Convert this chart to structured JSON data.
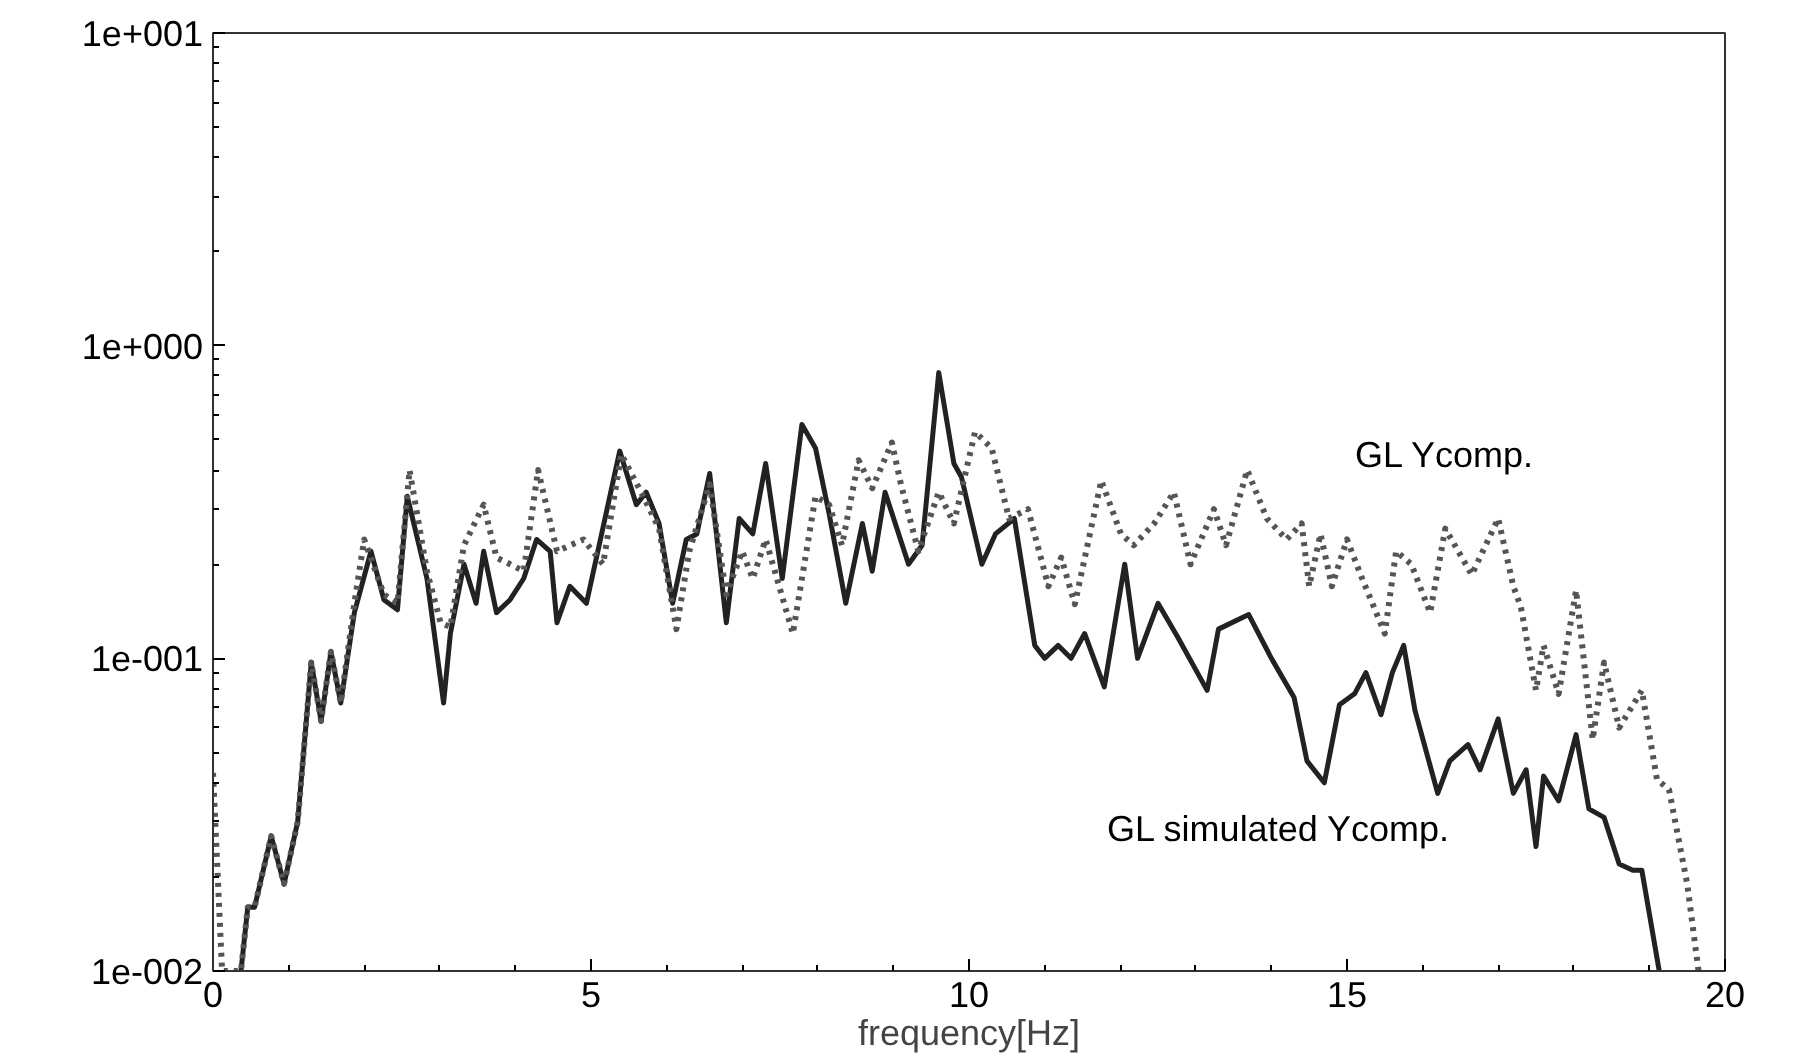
{
  "chart_data": {
    "type": "line",
    "xlabel": "frequency[Hz]",
    "xlim": [
      0,
      20
    ],
    "xticks": [
      0,
      5,
      10,
      15,
      20
    ],
    "ylim": [
      0.01,
      10
    ],
    "log": true,
    "yticks": [
      {
        "value": 0.01,
        "label": "1e-002"
      },
      {
        "value": 0.1,
        "label": "1e-001"
      },
      {
        "value": 1,
        "label": "1e+000"
      },
      {
        "value": 10,
        "label": "1e+001"
      }
    ],
    "grid": false,
    "legend": false,
    "marker": "none",
    "series": [
      {
        "name": "GL simulated Ycomp.",
        "color": "#222222",
        "line_style": "solid",
        "x": [
          0.37,
          0.46,
          0.55,
          0.77,
          0.94,
          1.12,
          1.3,
          1.43,
          1.56,
          1.69,
          1.87,
          2.09,
          2.26,
          2.44,
          2.57,
          2.83,
          3.05,
          3.14,
          3.32,
          3.48,
          3.58,
          3.75,
          3.93,
          4.11,
          4.28,
          4.46,
          4.55,
          4.72,
          4.94,
          5.38,
          5.6,
          5.73,
          5.9,
          6.08,
          6.26,
          6.4,
          6.57,
          6.79,
          6.96,
          7.14,
          7.31,
          7.53,
          7.79,
          7.97,
          8.15,
          8.37,
          8.59,
          8.72,
          8.89,
          9.2,
          9.38,
          9.6,
          9.8,
          9.9,
          10.17,
          10.35,
          10.6,
          10.87,
          11.0,
          11.18,
          11.35,
          11.53,
          11.79,
          12.06,
          12.23,
          12.5,
          12.76,
          13.15,
          13.3,
          13.7,
          14.0,
          14.3,
          14.47,
          14.7,
          14.9,
          15.1,
          15.25,
          15.45,
          15.6,
          15.75,
          15.9,
          16.2,
          16.36,
          16.6,
          16.76,
          17.0,
          17.2,
          17.37,
          17.5,
          17.6,
          17.8,
          18.03,
          18.2,
          18.4,
          18.6,
          18.78,
          18.9,
          19.13
        ],
        "values": [
          0.01,
          0.016,
          0.016,
          0.027,
          0.019,
          0.03,
          0.097,
          0.063,
          0.105,
          0.072,
          0.14,
          0.22,
          0.154,
          0.143,
          0.33,
          0.18,
          0.072,
          0.12,
          0.2,
          0.15,
          0.22,
          0.14,
          0.154,
          0.18,
          0.24,
          0.22,
          0.13,
          0.17,
          0.15,
          0.46,
          0.31,
          0.34,
          0.27,
          0.15,
          0.24,
          0.25,
          0.39,
          0.13,
          0.28,
          0.25,
          0.42,
          0.18,
          0.56,
          0.47,
          0.29,
          0.15,
          0.27,
          0.19,
          0.34,
          0.2,
          0.23,
          0.82,
          0.42,
          0.38,
          0.2,
          0.25,
          0.28,
          0.11,
          0.1,
          0.11,
          0.1,
          0.12,
          0.081,
          0.2,
          0.1,
          0.15,
          0.117,
          0.079,
          0.124,
          0.138,
          0.1,
          0.075,
          0.047,
          0.04,
          0.071,
          0.077,
          0.09,
          0.066,
          0.09,
          0.11,
          0.068,
          0.037,
          0.047,
          0.053,
          0.044,
          0.064,
          0.037,
          0.044,
          0.025,
          0.042,
          0.035,
          0.057,
          0.033,
          0.031,
          0.022,
          0.021,
          0.021,
          0.01
        ]
      },
      {
        "name": "GL Ycomp.",
        "color": "#555555",
        "line_style": "dotted",
        "x": [
          0.0,
          0.12,
          0.37,
          0.46,
          0.55,
          0.77,
          0.94,
          1.12,
          1.3,
          1.43,
          1.56,
          1.69,
          1.87,
          2.0,
          2.26,
          2.44,
          2.6,
          2.83,
          3.01,
          3.14,
          3.32,
          3.58,
          3.75,
          3.93,
          4.11,
          4.3,
          4.55,
          4.9,
          5.16,
          5.4,
          5.69,
          5.9,
          6.13,
          6.3,
          6.57,
          6.79,
          7.0,
          7.14,
          7.31,
          7.67,
          7.97,
          8.15,
          8.32,
          8.54,
          8.72,
          8.98,
          9.1,
          9.33,
          9.6,
          9.8,
          10.08,
          10.3,
          10.53,
          10.78,
          11.05,
          11.22,
          11.4,
          11.75,
          12.01,
          12.18,
          12.45,
          12.71,
          12.93,
          13.24,
          13.4,
          13.68,
          13.94,
          14.2,
          14.4,
          14.5,
          14.65,
          14.8,
          15.0,
          15.2,
          15.5,
          15.65,
          15.85,
          16.1,
          16.3,
          16.65,
          17.0,
          17.2,
          17.3,
          17.5,
          17.6,
          17.8,
          18.03,
          18.25,
          18.4,
          18.6,
          18.9,
          19.1,
          19.26,
          19.5,
          19.65
        ],
        "values": [
          0.043,
          0.01,
          0.01,
          0.016,
          0.016,
          0.027,
          0.019,
          0.03,
          0.097,
          0.063,
          0.105,
          0.072,
          0.15,
          0.24,
          0.16,
          0.15,
          0.4,
          0.19,
          0.13,
          0.126,
          0.23,
          0.31,
          0.21,
          0.2,
          0.19,
          0.4,
          0.22,
          0.24,
          0.2,
          0.45,
          0.33,
          0.26,
          0.124,
          0.22,
          0.36,
          0.16,
          0.22,
          0.18,
          0.24,
          0.12,
          0.33,
          0.31,
          0.23,
          0.43,
          0.35,
          0.49,
          0.36,
          0.22,
          0.34,
          0.27,
          0.53,
          0.47,
          0.28,
          0.3,
          0.17,
          0.21,
          0.149,
          0.37,
          0.25,
          0.23,
          0.27,
          0.34,
          0.2,
          0.3,
          0.23,
          0.4,
          0.28,
          0.24,
          0.27,
          0.17,
          0.25,
          0.17,
          0.24,
          0.18,
          0.12,
          0.22,
          0.2,
          0.14,
          0.26,
          0.185,
          0.28,
          0.17,
          0.146,
          0.079,
          0.11,
          0.077,
          0.165,
          0.055,
          0.097,
          0.06,
          0.079,
          0.041,
          0.038,
          0.019,
          0.01
        ]
      }
    ]
  }
}
